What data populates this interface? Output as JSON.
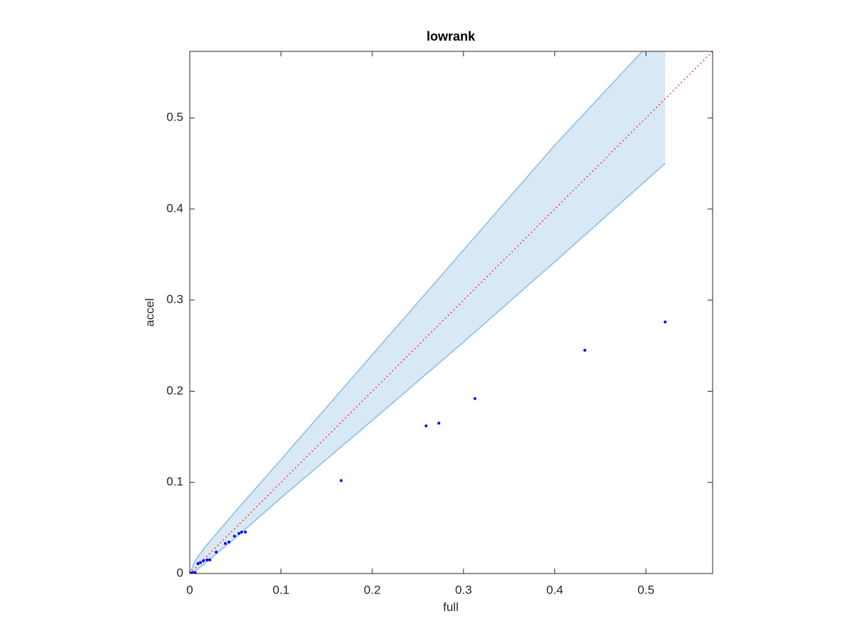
{
  "chart_data": {
    "type": "scatter",
    "title": "lowrank",
    "x_label": "full",
    "y_label": "accel",
    "xlim": [
      0,
      0.573
    ],
    "ylim": [
      0,
      0.573
    ],
    "xticks": [
      0,
      0.1,
      0.2,
      0.3,
      0.4,
      0.5
    ],
    "yticks": [
      0,
      0.1,
      0.2,
      0.3,
      0.4,
      0.5
    ],
    "grid": false,
    "color": "#0000ff",
    "x": [
      0.521,
      0.433,
      0.3125,
      0.273,
      0.259,
      0.166,
      0.061,
      0.057,
      0.054,
      0.049,
      0.043,
      0.039,
      0.029,
      0.022,
      0.019,
      0.015,
      0.0117,
      0.009,
      0.006,
      0.003,
      0.001
    ],
    "values": [
      0.276,
      0.245,
      0.192,
      0.165,
      0.162,
      0.102,
      0.0455,
      0.0455,
      0.044,
      0.041,
      0.0345,
      0.033,
      0.0235,
      0.015,
      0.015,
      0.014,
      0.012,
      0.011,
      0.001,
      0.001,
      0
    ],
    "band": {
      "color": "#d9e8f5",
      "edge_color": "#88bde3",
      "x": [
        0,
        0.005,
        0.01,
        0.02,
        0.05,
        0.1,
        0.2,
        0.3,
        0.4,
        0.521
      ],
      "upper": [
        0,
        0.012,
        0.02,
        0.033,
        0.068,
        0.125,
        0.24,
        0.355,
        0.47,
        0.6
      ],
      "lower": [
        0,
        0.002,
        0.006,
        0.014,
        0.039,
        0.083,
        0.168,
        0.254,
        0.342,
        0.45
      ]
    },
    "reference_line": {
      "color": "#ff0000",
      "x": [
        0,
        0.573
      ],
      "values": [
        0,
        0.573
      ]
    }
  }
}
